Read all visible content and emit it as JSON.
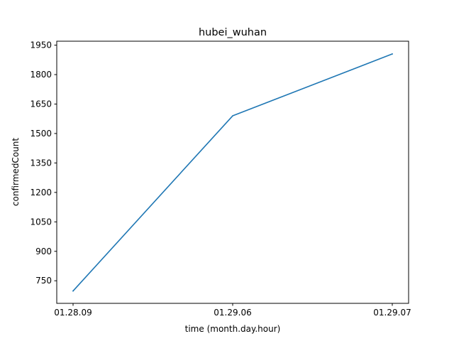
{
  "chart_data": {
    "type": "line",
    "title": "hubei_wuhan",
    "xlabel": "time (month.day.hour)",
    "ylabel": "confirmedCount",
    "categories": [
      "01.28.09",
      "01.29.06",
      "01.29.07"
    ],
    "series": [
      {
        "values": [
          698,
          1590,
          1905
        ],
        "color": "#1f77b4"
      }
    ],
    "yticks": [
      750,
      900,
      1050,
      1200,
      1350,
      1500,
      1650,
      1800,
      1950
    ],
    "ylim": [
      635,
      1970
    ],
    "grid": false,
    "legend": "none"
  }
}
